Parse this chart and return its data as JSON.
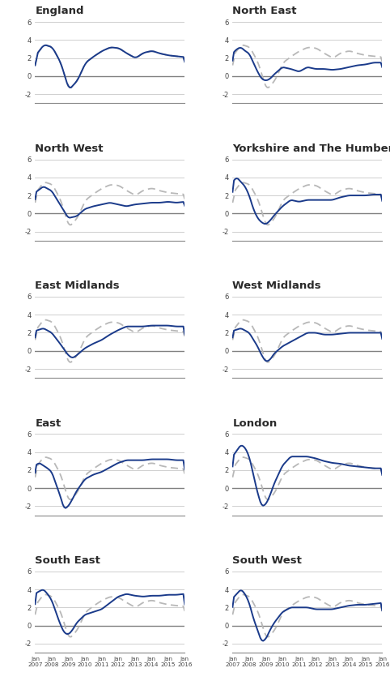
{
  "regions": [
    "England",
    "North East",
    "North West",
    "Yorkshire and The Humber",
    "East Midlands",
    "West Midlands",
    "East",
    "London",
    "South East",
    "South West"
  ],
  "blue_color": "#1a3a8a",
  "gray_color": "#b8b8b8",
  "background": "#ffffff",
  "title_fontsize": 9.5,
  "tick_fontsize": 6.0,
  "yticks": [
    -2,
    0,
    2,
    4,
    6
  ],
  "ylim": [
    -3,
    6.5
  ],
  "xlim": [
    0,
    108
  ]
}
